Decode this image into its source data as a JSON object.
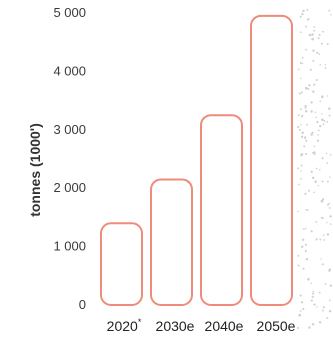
{
  "chart_data": {
    "type": "bar",
    "categories": [
      "2020",
      "2030e",
      "2040e",
      "2050e"
    ],
    "category_footnote_marks": [
      "*",
      "",
      "",
      ""
    ],
    "values": [
      1400,
      2150,
      3250,
      4950
    ],
    "ylabel": "tonnes (1000')",
    "ylim": [
      0,
      5000
    ],
    "y_ticks": [
      "0",
      "1 000",
      "2 000",
      "3 000",
      "4 000",
      "5 000"
    ],
    "y_tick_values": [
      0,
      1000,
      2000,
      3000,
      4000,
      5000
    ],
    "grid": false,
    "bar_style": "rounded outline",
    "colors": {
      "bar_stroke": "#ee8c7c",
      "bar_fill": "#ffffff"
    }
  }
}
